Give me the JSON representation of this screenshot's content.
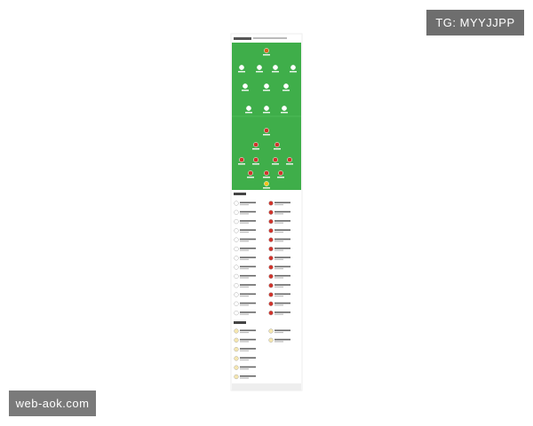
{
  "watermarks": {
    "top_right": "TG: MYYJJPP",
    "bottom_left": "web-aok.com"
  }
}
